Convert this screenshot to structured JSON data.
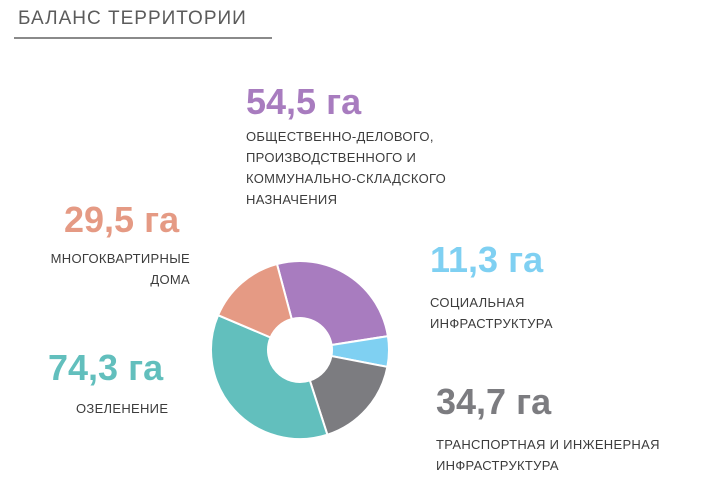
{
  "page_title": "БАЛАНС ТЕРРИТОРИИ",
  "chart_data": {
    "type": "pie",
    "unit": "га",
    "slices": [
      {
        "value": 54.5,
        "value_label": "54,5 га",
        "label": "ОБЩЕСТВЕННО-ДЕЛОВОГО,\nПРОИЗВОДСТВЕННОГО И\nКОММУНАЛЬНО-СКЛАДСКОГО\nНАЗНАЧЕНИЯ",
        "color": "#a87cbf"
      },
      {
        "value": 11.3,
        "value_label": "11,3 га",
        "label": "СОЦИАЛЬНАЯ\nИНФРАСТРУКТУРА",
        "color": "#7fd0f2"
      },
      {
        "value": 34.7,
        "value_label": "34,7 га",
        "label": "ТРАНСПОРТНАЯ И ИНЖЕНЕРНАЯ\nИНФРАСТРУКТУРА",
        "color": "#7c7c80"
      },
      {
        "value": 74.3,
        "value_label": "74,3 га",
        "label": "ОЗЕЛЕНЕНИЕ",
        "color": "#62bfbd"
      },
      {
        "value": 29.5,
        "value_label": "29,5 га",
        "label": "МНОГОКВАРТИРНЫЕ\nДОМА",
        "color": "#e59a84"
      }
    ]
  }
}
